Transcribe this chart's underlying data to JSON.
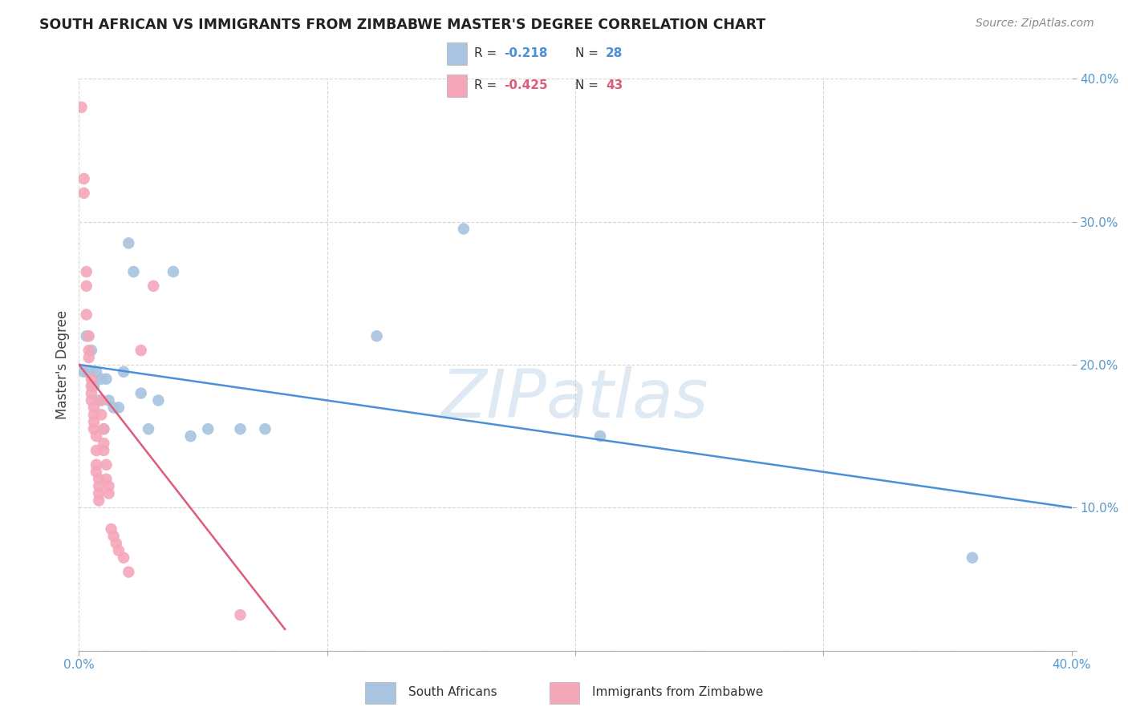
{
  "title": "SOUTH AFRICAN VS IMMIGRANTS FROM ZIMBABWE MASTER'S DEGREE CORRELATION CHART",
  "source": "Source: ZipAtlas.com",
  "ylabel": "Master's Degree",
  "xlim": [
    0.0,
    0.4
  ],
  "ylim": [
    0.0,
    0.4
  ],
  "xticks": [
    0.0,
    0.1,
    0.2,
    0.3,
    0.4
  ],
  "yticks": [
    0.0,
    0.1,
    0.2,
    0.3,
    0.4
  ],
  "xticklabels": [
    "0.0%",
    "",
    "",
    "",
    "40.0%"
  ],
  "yticklabels": [
    "",
    "10.0%",
    "20.0%",
    "30.0%",
    "40.0%"
  ],
  "blue_color": "#a8c4e0",
  "pink_color": "#f4a7b9",
  "blue_line_color": "#4a90d9",
  "pink_line_color": "#e05a7a",
  "r_blue": -0.218,
  "n_blue": 28,
  "r_pink": -0.425,
  "n_pink": 43,
  "blue_scatter_x": [
    0.002,
    0.003,
    0.004,
    0.005,
    0.006,
    0.007,
    0.008,
    0.009,
    0.01,
    0.011,
    0.012,
    0.014,
    0.016,
    0.018,
    0.02,
    0.022,
    0.025,
    0.028,
    0.032,
    0.038,
    0.045,
    0.052,
    0.065,
    0.075,
    0.12,
    0.155,
    0.21,
    0.36
  ],
  "blue_scatter_y": [
    0.195,
    0.22,
    0.195,
    0.21,
    0.185,
    0.195,
    0.175,
    0.19,
    0.155,
    0.19,
    0.175,
    0.17,
    0.17,
    0.195,
    0.285,
    0.265,
    0.18,
    0.155,
    0.175,
    0.265,
    0.15,
    0.155,
    0.155,
    0.155,
    0.22,
    0.295,
    0.15,
    0.065
  ],
  "pink_scatter_x": [
    0.001,
    0.002,
    0.002,
    0.003,
    0.003,
    0.003,
    0.004,
    0.004,
    0.004,
    0.005,
    0.005,
    0.005,
    0.005,
    0.006,
    0.006,
    0.006,
    0.006,
    0.007,
    0.007,
    0.007,
    0.007,
    0.008,
    0.008,
    0.008,
    0.008,
    0.009,
    0.009,
    0.01,
    0.01,
    0.01,
    0.011,
    0.011,
    0.012,
    0.012,
    0.013,
    0.014,
    0.015,
    0.016,
    0.018,
    0.02,
    0.025,
    0.03,
    0.065
  ],
  "pink_scatter_y": [
    0.38,
    0.33,
    0.32,
    0.265,
    0.255,
    0.235,
    0.22,
    0.21,
    0.205,
    0.19,
    0.185,
    0.18,
    0.175,
    0.17,
    0.165,
    0.16,
    0.155,
    0.15,
    0.14,
    0.13,
    0.125,
    0.12,
    0.115,
    0.11,
    0.105,
    0.175,
    0.165,
    0.155,
    0.145,
    0.14,
    0.13,
    0.12,
    0.115,
    0.11,
    0.085,
    0.08,
    0.075,
    0.07,
    0.065,
    0.055,
    0.21,
    0.255,
    0.025
  ],
  "blue_line_x0": 0.0,
  "blue_line_y0": 0.2,
  "blue_line_x1": 0.4,
  "blue_line_y1": 0.1,
  "pink_line_x0": 0.0,
  "pink_line_y0": 0.2,
  "pink_line_x1": 0.083,
  "pink_line_y1": 0.015,
  "watermark_text": "ZIPatlas",
  "background_color": "#ffffff",
  "grid_color": "#cccccc"
}
